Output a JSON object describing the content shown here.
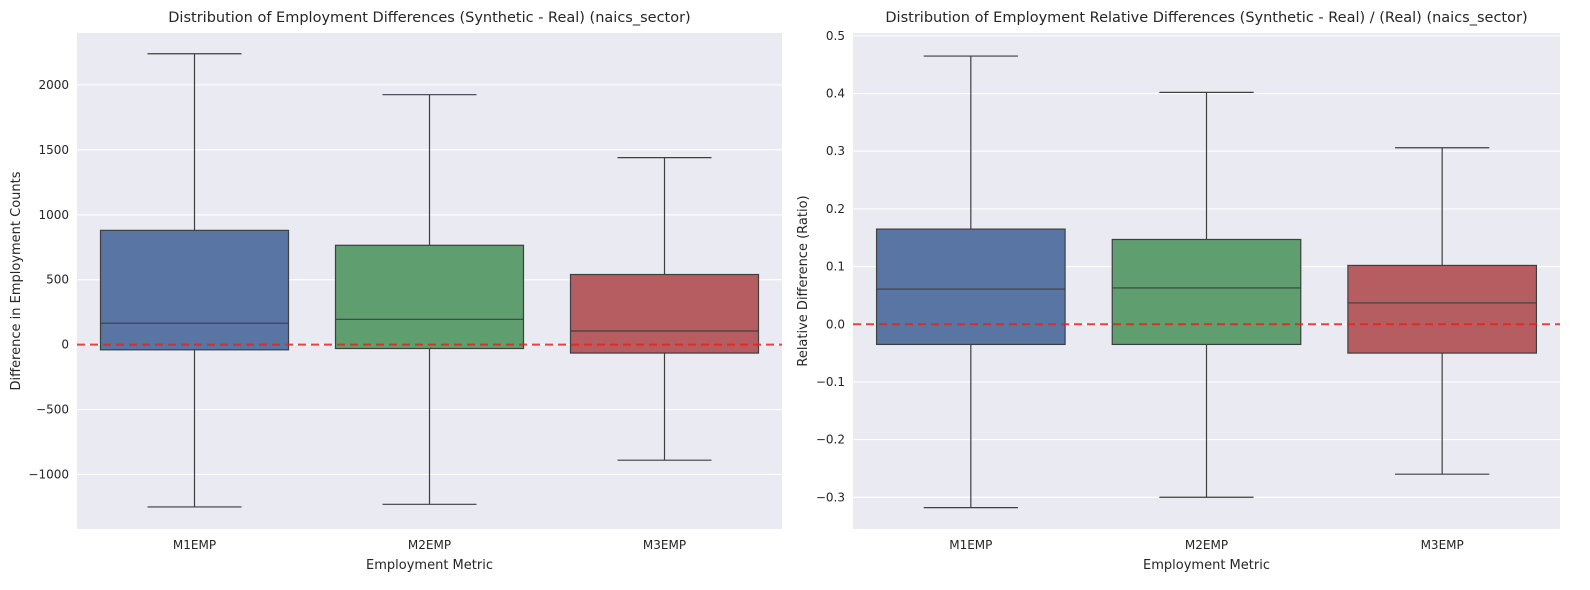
{
  "chart_data": [
    {
      "type": "box",
      "title": "Distribution of Employment Differences (Synthetic - Real) (naics_sector)",
      "xlabel": "Employment Metric",
      "ylabel": "Difference in Employment Counts",
      "ylim": [
        -1420,
        2400
      ],
      "yticks": [
        -1000,
        -500,
        0,
        500,
        1000,
        1500,
        2000
      ],
      "ytick_labels": [
        "−1000",
        "−500",
        "0",
        "500",
        "1000",
        "1500",
        "2000"
      ],
      "reference_line": 0,
      "categories": [
        "M1EMP",
        "M2EMP",
        "M3EMP"
      ],
      "colors": [
        "#5875a4",
        "#5f9e6e",
        "#b55d60"
      ],
      "boxes": [
        {
          "category": "M1EMP",
          "whisker_low": -1250,
          "q1": -40,
          "median": 165,
          "q3": 880,
          "whisker_high": 2240
        },
        {
          "category": "M2EMP",
          "whisker_low": -1230,
          "q1": -30,
          "median": 195,
          "q3": 765,
          "whisker_high": 1925
        },
        {
          "category": "M3EMP",
          "whisker_low": -890,
          "q1": -65,
          "median": 105,
          "q3": 540,
          "whisker_high": 1440
        }
      ]
    },
    {
      "type": "box",
      "title": "Distribution of Employment Relative Differences (Synthetic - Real) / (Real) (naics_sector)",
      "xlabel": "Employment Metric",
      "ylabel": "Relative Difference (Ratio)",
      "ylim": [
        -0.355,
        0.505
      ],
      "yticks": [
        -0.3,
        -0.2,
        -0.1,
        0.0,
        0.1,
        0.2,
        0.3,
        0.4,
        0.5
      ],
      "ytick_labels": [
        "−0.3",
        "−0.2",
        "−0.1",
        "0.0",
        "0.1",
        "0.2",
        "0.3",
        "0.4",
        "0.5"
      ],
      "reference_line": 0,
      "categories": [
        "M1EMP",
        "M2EMP",
        "M3EMP"
      ],
      "colors": [
        "#5875a4",
        "#5f9e6e",
        "#b55d60"
      ],
      "boxes": [
        {
          "category": "M1EMP",
          "whisker_low": -0.318,
          "q1": -0.035,
          "median": 0.061,
          "q3": 0.165,
          "whisker_high": 0.465
        },
        {
          "category": "M2EMP",
          "whisker_low": -0.3,
          "q1": -0.035,
          "median": 0.063,
          "q3": 0.147,
          "whisker_high": 0.402
        },
        {
          "category": "M3EMP",
          "whisker_low": -0.26,
          "q1": -0.05,
          "median": 0.037,
          "q3": 0.102,
          "whisker_high": 0.306
        }
      ]
    }
  ]
}
